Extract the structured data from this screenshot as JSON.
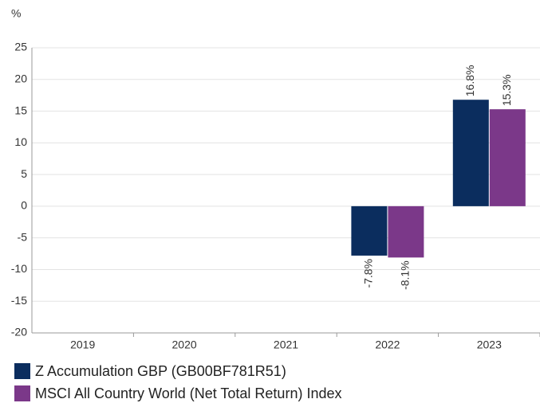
{
  "chart_data": {
    "type": "bar",
    "y_label": "%",
    "categories": [
      "2019",
      "2020",
      "2021",
      "2022",
      "2023"
    ],
    "series": [
      {
        "name": "Z Accumulation GBP (GB00BF781R51)",
        "color": "#0b2d5e",
        "values": [
          null,
          null,
          null,
          -7.8,
          16.8
        ],
        "value_labels": [
          null,
          null,
          null,
          "-7.8%",
          "16.8%"
        ]
      },
      {
        "name": "MSCI All Country World (Net Total Return) Index",
        "color": "#7b3889",
        "values": [
          null,
          null,
          null,
          -8.1,
          15.3
        ],
        "value_labels": [
          null,
          null,
          null,
          "-8.1%",
          "15.3%"
        ]
      }
    ],
    "ylim": [
      -20,
      25
    ],
    "yticks": [
      -20,
      -15,
      -10,
      -5,
      0,
      5,
      10,
      15,
      20,
      25
    ],
    "grid": true
  }
}
